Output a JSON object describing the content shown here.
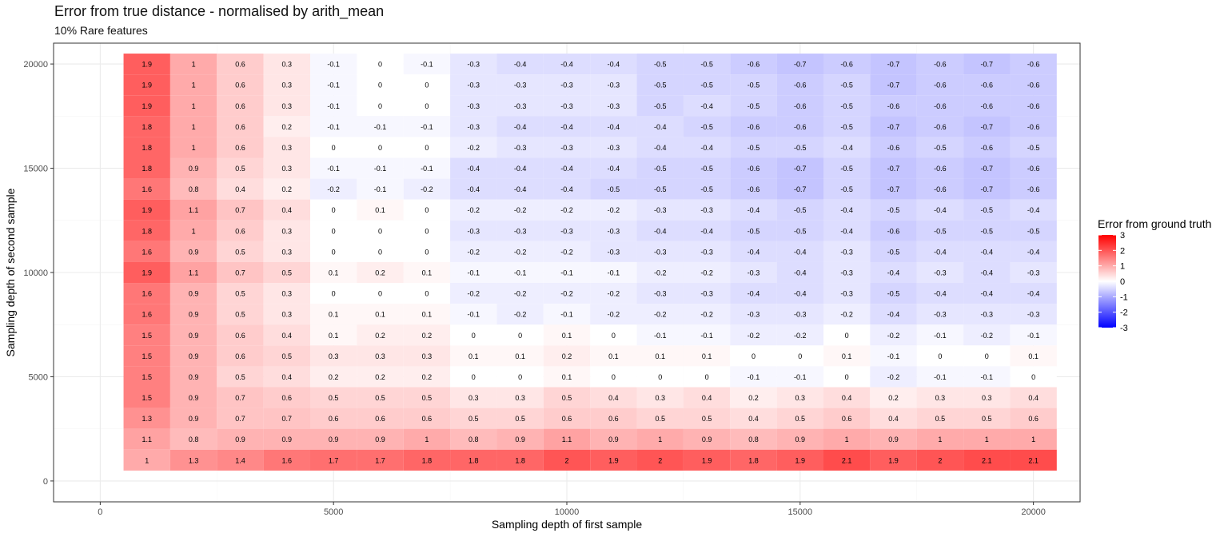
{
  "chart_data": {
    "type": "heatmap",
    "title": "Error from true distance - normalised by arith_mean",
    "subtitle": "10% Rare features",
    "xlabel": "Sampling depth of first sample",
    "ylabel": "Sampling depth of second sample",
    "x": [
      1000,
      2000,
      3000,
      4000,
      5000,
      6000,
      7000,
      8000,
      9000,
      10000,
      11000,
      12000,
      13000,
      14000,
      15000,
      16000,
      17000,
      18000,
      19000,
      20000
    ],
    "y": [
      20000,
      19000,
      18000,
      17000,
      16000,
      15000,
      14000,
      13000,
      12000,
      11000,
      10000,
      9000,
      8000,
      7000,
      6000,
      5000,
      4000,
      3000,
      2000,
      1000
    ],
    "values": [
      [
        1.9,
        1,
        0.6,
        0.3,
        -0.1,
        0,
        -0.1,
        -0.3,
        -0.4,
        -0.4,
        -0.4,
        -0.5,
        -0.5,
        -0.6,
        -0.7,
        -0.6,
        -0.7,
        -0.6,
        -0.7,
        -0.6
      ],
      [
        1.9,
        1,
        0.6,
        0.3,
        -0.1,
        0,
        0,
        -0.3,
        -0.3,
        -0.3,
        -0.3,
        -0.5,
        -0.5,
        -0.5,
        -0.6,
        -0.5,
        -0.7,
        -0.6,
        -0.6,
        -0.6
      ],
      [
        1.9,
        1,
        0.6,
        0.3,
        -0.1,
        0,
        0,
        -0.3,
        -0.3,
        -0.3,
        -0.3,
        -0.5,
        -0.4,
        -0.5,
        -0.6,
        -0.5,
        -0.6,
        -0.6,
        -0.6,
        -0.6
      ],
      [
        1.8,
        1,
        0.6,
        0.2,
        -0.1,
        -0.1,
        -0.1,
        -0.3,
        -0.4,
        -0.4,
        -0.4,
        -0.4,
        -0.5,
        -0.6,
        -0.6,
        -0.5,
        -0.7,
        -0.6,
        -0.7,
        -0.6
      ],
      [
        1.8,
        1,
        0.6,
        0.3,
        0,
        0,
        0,
        -0.2,
        -0.3,
        -0.3,
        -0.3,
        -0.4,
        -0.4,
        -0.5,
        -0.5,
        -0.4,
        -0.6,
        -0.5,
        -0.6,
        -0.5
      ],
      [
        1.8,
        0.9,
        0.5,
        0.3,
        -0.1,
        -0.1,
        -0.1,
        -0.4,
        -0.4,
        -0.4,
        -0.4,
        -0.5,
        -0.5,
        -0.6,
        -0.7,
        -0.5,
        -0.7,
        -0.6,
        -0.7,
        -0.6
      ],
      [
        1.6,
        0.8,
        0.4,
        0.2,
        -0.2,
        -0.1,
        -0.2,
        -0.4,
        -0.4,
        -0.4,
        -0.5,
        -0.5,
        -0.5,
        -0.6,
        -0.7,
        -0.5,
        -0.7,
        -0.6,
        -0.7,
        -0.6
      ],
      [
        1.9,
        1.1,
        0.7,
        0.4,
        0,
        0.1,
        0,
        -0.2,
        -0.2,
        -0.2,
        -0.2,
        -0.3,
        -0.3,
        -0.4,
        -0.5,
        -0.4,
        -0.5,
        -0.4,
        -0.5,
        -0.4
      ],
      [
        1.8,
        1,
        0.6,
        0.3,
        0,
        0,
        0,
        -0.3,
        -0.3,
        -0.3,
        -0.3,
        -0.4,
        -0.4,
        -0.5,
        -0.5,
        -0.4,
        -0.6,
        -0.5,
        -0.5,
        -0.5
      ],
      [
        1.6,
        0.9,
        0.5,
        0.3,
        0,
        0,
        0,
        -0.2,
        -0.2,
        -0.2,
        -0.3,
        -0.3,
        -0.3,
        -0.4,
        -0.4,
        -0.3,
        -0.5,
        -0.4,
        -0.4,
        -0.4
      ],
      [
        1.9,
        1.1,
        0.7,
        0.5,
        0.1,
        0.2,
        0.1,
        -0.1,
        -0.1,
        -0.1,
        -0.1,
        -0.2,
        -0.2,
        -0.3,
        -0.4,
        -0.3,
        -0.4,
        -0.3,
        -0.4,
        -0.3
      ],
      [
        1.6,
        0.9,
        0.5,
        0.3,
        0,
        0,
        0,
        -0.2,
        -0.2,
        -0.2,
        -0.2,
        -0.3,
        -0.3,
        -0.4,
        -0.4,
        -0.3,
        -0.5,
        -0.4,
        -0.4,
        -0.4
      ],
      [
        1.6,
        0.9,
        0.5,
        0.3,
        0.1,
        0.1,
        0.1,
        -0.1,
        -0.2,
        -0.1,
        -0.2,
        -0.2,
        -0.2,
        -0.3,
        -0.3,
        -0.2,
        -0.4,
        -0.3,
        -0.3,
        -0.3
      ],
      [
        1.5,
        0.9,
        0.6,
        0.4,
        0.1,
        0.2,
        0.2,
        0,
        0,
        0.1,
        0,
        -0.1,
        -0.1,
        -0.2,
        -0.2,
        0,
        -0.2,
        -0.1,
        -0.2,
        -0.1
      ],
      [
        1.5,
        0.9,
        0.6,
        0.5,
        0.3,
        0.3,
        0.3,
        0.1,
        0.1,
        0.2,
        0.1,
        0.1,
        0.1,
        0,
        0,
        0.1,
        -0.1,
        0,
        0,
        0.1
      ],
      [
        1.5,
        0.9,
        0.5,
        0.4,
        0.2,
        0.2,
        0.2,
        0,
        0,
        0.1,
        0,
        0,
        0,
        -0.1,
        -0.1,
        0,
        -0.2,
        -0.1,
        -0.1,
        0
      ],
      [
        1.5,
        0.9,
        0.7,
        0.6,
        0.5,
        0.5,
        0.5,
        0.3,
        0.3,
        0.5,
        0.4,
        0.3,
        0.4,
        0.2,
        0.3,
        0.4,
        0.2,
        0.3,
        0.3,
        0.4
      ],
      [
        1.3,
        0.9,
        0.7,
        0.7,
        0.6,
        0.6,
        0.6,
        0.5,
        0.5,
        0.6,
        0.6,
        0.5,
        0.5,
        0.4,
        0.5,
        0.6,
        0.4,
        0.5,
        0.5,
        0.6
      ],
      [
        1.1,
        0.8,
        0.9,
        0.9,
        0.9,
        0.9,
        1,
        0.8,
        0.9,
        1.1,
        0.9,
        1,
        0.9,
        0.8,
        0.9,
        1,
        0.9,
        1,
        1,
        1
      ],
      [
        1,
        1.3,
        1.4,
        1.6,
        1.7,
        1.7,
        1.8,
        1.8,
        1.8,
        2,
        1.9,
        2,
        1.9,
        1.8,
        1.9,
        2.1,
        1.9,
        2,
        2.1,
        2.1
      ]
    ],
    "xticks": [
      0,
      5000,
      10000,
      15000,
      20000
    ],
    "yticks": [
      0,
      5000,
      10000,
      15000,
      20000
    ],
    "xlim": [
      -1000,
      21000
    ],
    "ylim": [
      -1000,
      21000
    ],
    "grid": true,
    "legend": {
      "title": "Error from ground truth",
      "placement": "right",
      "breaks": [
        3,
        2,
        1,
        0,
        -1,
        -2,
        -3
      ],
      "limits": [
        -3,
        3
      ],
      "low_color": "#0000FF",
      "mid_color": "#FFFFFF",
      "high_color": "#FF0000"
    },
    "colors": {
      "panel_border": "#333333",
      "grid_major": "#EBEBEB",
      "grid_minor": "#F5F5F5",
      "axis_text": "#4D4D4D"
    }
  }
}
